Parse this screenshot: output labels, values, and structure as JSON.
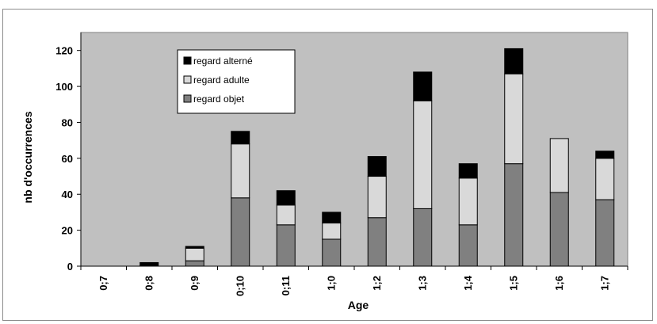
{
  "chart_data": {
    "type": "bar",
    "stacked": true,
    "title": "",
    "xlabel": "Age",
    "ylabel": "nb d'occurrences",
    "categories": [
      "0;7",
      "0;8",
      "0;9",
      "0;10",
      "0;11",
      "1;0",
      "1;2",
      "1;3",
      "1;4",
      "1;5",
      "1;6",
      "1;7"
    ],
    "ylim": [
      0,
      130
    ],
    "yticks": [
      0,
      20,
      40,
      60,
      80,
      100,
      120
    ],
    "grid": false,
    "legend_position": "top-left",
    "plot_background": "#c0c0c0",
    "series": [
      {
        "name": "regard objet",
        "color": "#808080",
        "values": [
          0,
          0,
          3,
          38,
          23,
          15,
          27,
          32,
          23,
          57,
          41,
          37
        ]
      },
      {
        "name": "regard adulte",
        "color": "#d9d9d9",
        "values": [
          0,
          0,
          7,
          30,
          11,
          9,
          23,
          60,
          26,
          50,
          30,
          23
        ]
      },
      {
        "name": "regard alterné",
        "color": "#000000",
        "values": [
          0,
          2,
          1,
          7,
          8,
          6,
          11,
          16,
          8,
          14,
          0,
          4
        ]
      }
    ]
  }
}
